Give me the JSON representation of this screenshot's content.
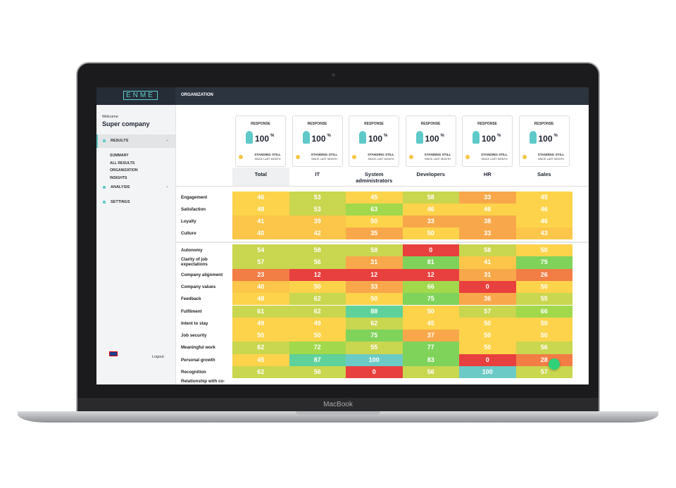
{
  "device": {
    "label": "MacBook"
  },
  "header": {
    "logo": "ENME",
    "title": "ORGANIZATION"
  },
  "sidebar": {
    "welcome": "Welcome",
    "company": "Super company",
    "menu": [
      {
        "label": "RESULTS",
        "items": [
          "SUMMARY",
          "ALL RESULTS",
          "ORGANIZATION",
          "INSIGHTS"
        ]
      },
      {
        "label": "ANALYSIS"
      },
      {
        "label": "SETTINGS"
      }
    ],
    "logout": "Logout"
  },
  "cards": [
    {
      "title": "RESPONSE",
      "value": 100,
      "unit": "%",
      "status": "STANDING STILL",
      "note": "SINCE LAST MONTH"
    },
    {
      "title": "RESPONSE",
      "value": 100,
      "unit": "%",
      "status": "STANDING STILL",
      "note": "SINCE LAST MONTH"
    },
    {
      "title": "RESPONSE",
      "value": 100,
      "unit": "%",
      "status": "STANDING STILL",
      "note": "SINCE LAST MONTH"
    },
    {
      "title": "RESPONSE",
      "value": 100,
      "unit": "%",
      "status": "STANDING STILL",
      "note": "SINCE LAST MONTH"
    },
    {
      "title": "RESPONSE",
      "value": 100,
      "unit": "%",
      "status": "STANDING STILL",
      "note": "SINCE LAST MONTH"
    },
    {
      "title": "RESPONSE",
      "value": 100,
      "unit": "%",
      "status": "STANDING STILL",
      "note": "SINCE LAST MONTH"
    }
  ],
  "table": {
    "columns": [
      "Total",
      "IT",
      "System administrators",
      "Developers",
      "HR",
      "Sales"
    ],
    "groups": [
      [
        {
          "label": "Engagement",
          "values": [
            46,
            53,
            45,
            58,
            33,
            45
          ]
        },
        {
          "label": "Satisfaction",
          "values": [
            48,
            53,
            63,
            46,
            46,
            46
          ]
        },
        {
          "label": "Loyalty",
          "values": [
            41,
            39,
            50,
            33,
            38,
            46
          ]
        },
        {
          "label": "Culture",
          "values": [
            40,
            42,
            35,
            50,
            33,
            43
          ]
        }
      ],
      [
        {
          "label": "Autonomy",
          "values": [
            54,
            58,
            58,
            0,
            58,
            50
          ]
        },
        {
          "label": "Clarity of job expectations",
          "values": [
            57,
            56,
            31,
            81,
            41,
            75
          ]
        },
        {
          "label": "Company alignment",
          "values": [
            23,
            12,
            12,
            12,
            31,
            26
          ]
        },
        {
          "label": "Company values",
          "values": [
            40,
            50,
            33,
            66,
            0,
            50
          ]
        },
        {
          "label": "Feedback",
          "values": [
            48,
            62,
            50,
            75,
            36,
            55
          ]
        },
        {
          "label": "Fulfilment",
          "values": [
            61,
            62,
            88,
            50,
            57,
            66
          ]
        },
        {
          "label": "Intent to stay",
          "values": [
            49,
            49,
            62,
            45,
            50,
            50
          ]
        },
        {
          "label": "Job security",
          "values": [
            50,
            50,
            75,
            37,
            50,
            50
          ]
        },
        {
          "label": "Meaningful work",
          "values": [
            62,
            72,
            55,
            77,
            50,
            56
          ]
        },
        {
          "label": "Personal growth",
          "values": [
            45,
            87,
            100,
            83,
            0,
            28
          ]
        },
        {
          "label": "Recognition",
          "values": [
            62,
            56,
            0,
            56,
            100,
            57
          ]
        },
        {
          "label": "Relationship with co-"
        }
      ]
    ]
  }
}
